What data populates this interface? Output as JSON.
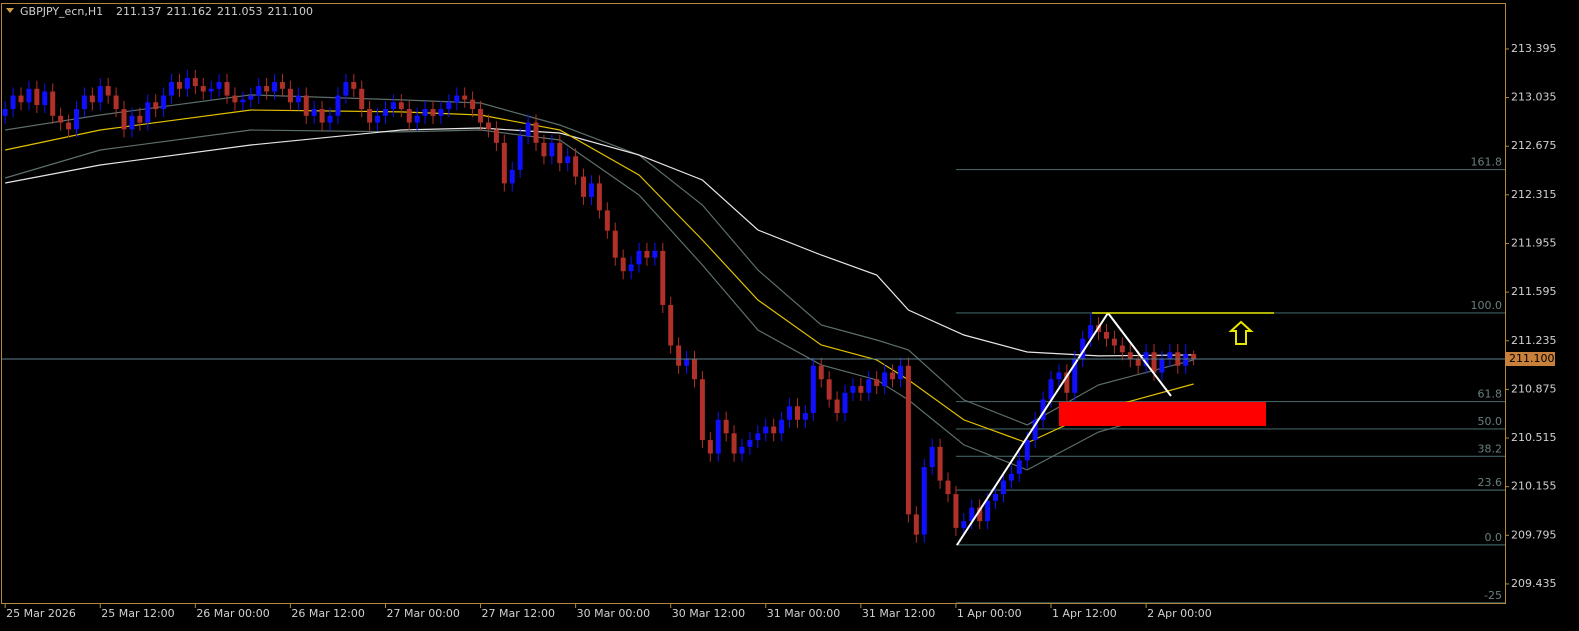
{
  "chart_data": {
    "type": "candlestick",
    "symbol": "GBPJPY_ecn,H1",
    "ohlc": [
      211.137,
      211.162,
      211.053,
      {
        "value": 211.1,
        "label": "211.100"
      }
    ],
    "current_price": {
      "value": 211.1,
      "label": "211.100"
    },
    "up_color": "#1010ff",
    "down_color": "#b0302a",
    "ylim": [
      209.294,
      213.735
    ],
    "yticks": [
      213.395,
      213.035,
      212.675,
      212.315,
      211.955,
      211.595,
      211.235,
      210.875,
      210.515,
      210.155,
      209.795,
      209.435
    ],
    "xlim": [
      -0.4,
      189.3
    ],
    "xticks": [
      {
        "value": 0,
        "label": "25 Mar 2026"
      },
      {
        "value": 12,
        "label": "25 Mar 12:00"
      },
      {
        "value": 24,
        "label": "26 Mar 00:00"
      },
      {
        "value": 36,
        "label": "26 Mar 12:00"
      },
      {
        "value": 48,
        "label": "27 Mar 00:00"
      },
      {
        "value": 60,
        "label": "27 Mar 12:00"
      },
      {
        "value": 72,
        "label": "30 Mar 00:00"
      },
      {
        "value": 84,
        "label": "30 Mar 12:00"
      },
      {
        "value": 96,
        "label": "31 Mar 00:00"
      },
      {
        "value": 108,
        "label": "31 Mar 12:00"
      },
      {
        "value": 120,
        "label": "1 Apr 00:00"
      },
      {
        "value": 132,
        "label": "1 Apr 12:00"
      },
      {
        "value": 144,
        "label": "2 Apr 00:00"
      }
    ],
    "open": [
      212.9,
      212.95,
      213.05,
      213.0,
      213.1,
      212.98,
      213.08,
      212.9,
      212.85,
      212.8,
      212.95,
      213.05,
      213.0,
      213.12,
      213.05,
      212.95,
      212.8,
      212.9,
      212.85,
      213.0,
      212.95,
      213.05,
      213.15,
      213.1,
      213.18,
      213.12,
      213.08,
      213.1,
      213.15,
      213.05,
      213.0,
      213.02,
      213.05,
      213.12,
      213.08,
      213.15,
      213.1,
      213.0,
      213.05,
      212.9,
      212.95,
      212.85,
      212.9,
      213.05,
      213.15,
      213.1,
      212.95,
      212.85,
      212.9,
      212.95,
      213.0,
      212.95,
      212.85,
      212.9,
      212.95,
      212.9,
      212.95,
      213.0,
      213.05,
      213.02,
      212.95,
      212.85,
      212.8,
      212.7,
      212.4,
      212.5,
      212.75,
      212.85,
      212.7,
      212.6,
      212.7,
      212.55,
      212.6,
      212.45,
      212.3,
      212.4,
      212.2,
      212.05,
      211.85,
      211.75,
      211.8,
      211.9,
      211.85,
      211.9,
      211.5,
      211.2,
      211.05,
      211.1,
      210.95,
      210.5,
      210.4,
      210.65,
      210.55,
      210.4,
      210.45,
      210.5,
      210.55,
      210.6,
      210.55,
      210.65,
      210.75,
      210.65,
      210.7,
      211.05,
      210.95,
      210.8,
      210.7,
      210.85,
      210.9,
      210.85,
      210.95,
      210.9,
      211.0,
      210.95,
      211.05,
      209.95,
      209.8,
      210.3,
      210.45,
      210.2,
      210.1,
      209.85,
      209.9,
      210.0,
      209.9,
      210.05,
      210.1,
      210.2,
      210.25,
      210.35,
      210.5,
      210.65,
      210.8,
      210.95,
      211.0,
      210.85,
      211.1,
      211.25,
      211.35,
      211.3,
      211.25,
      211.2,
      211.15,
      211.1,
      211.05,
      211.15,
      211.0,
      211.1,
      211.15,
      211.05,
      211.137
    ],
    "high": [
      213.01,
      213.11,
      213.11,
      213.16,
      213.16,
      213.14,
      213.14,
      212.96,
      212.91,
      213.01,
      213.11,
      213.11,
      213.18,
      213.18,
      213.11,
      213.01,
      212.96,
      212.96,
      213.06,
      213.06,
      213.11,
      213.21,
      213.21,
      213.24,
      213.24,
      213.18,
      213.16,
      213.21,
      213.21,
      213.11,
      213.08,
      213.11,
      213.18,
      213.18,
      213.21,
      213.21,
      213.16,
      213.11,
      213.11,
      213.01,
      213.01,
      212.96,
      213.11,
      213.21,
      213.21,
      213.16,
      213.01,
      212.96,
      213.01,
      213.06,
      213.06,
      213.01,
      212.96,
      213.01,
      213.01,
      213.01,
      213.06,
      213.11,
      213.11,
      213.08,
      213.01,
      212.91,
      212.86,
      212.76,
      212.56,
      212.81,
      212.91,
      212.91,
      212.76,
      212.76,
      212.76,
      212.66,
      212.66,
      212.51,
      212.46,
      212.46,
      212.26,
      212.11,
      211.91,
      211.86,
      211.96,
      211.96,
      211.96,
      211.96,
      211.56,
      211.26,
      211.16,
      211.16,
      211.01,
      210.56,
      210.71,
      210.71,
      210.61,
      210.51,
      210.56,
      210.61,
      210.66,
      210.66,
      210.71,
      210.81,
      210.81,
      210.76,
      211.11,
      211.11,
      211.01,
      210.86,
      210.91,
      210.96,
      210.96,
      211.01,
      211.01,
      211.06,
      211.06,
      211.11,
      211.11,
      210.01,
      210.36,
      210.51,
      210.51,
      210.26,
      210.16,
      209.96,
      210.06,
      210.06,
      210.11,
      210.16,
      210.26,
      210.31,
      210.41,
      210.56,
      210.71,
      210.86,
      211.01,
      211.06,
      211.06,
      211.16,
      211.31,
      211.44,
      211.41,
      211.36,
      211.31,
      211.26,
      211.21,
      211.16,
      211.21,
      211.21,
      211.16,
      211.21,
      211.21,
      211.21,
      211.162
    ],
    "low": [
      212.84,
      212.89,
      212.94,
      212.94,
      212.92,
      212.92,
      212.84,
      212.79,
      212.74,
      212.74,
      212.89,
      212.94,
      212.94,
      212.99,
      212.89,
      212.74,
      212.74,
      212.79,
      212.79,
      212.89,
      212.89,
      212.99,
      213.04,
      213.04,
      213.06,
      213.02,
      213.02,
      213.04,
      212.99,
      212.94,
      212.94,
      212.96,
      212.99,
      213.02,
      213.02,
      213.04,
      212.94,
      212.94,
      212.84,
      212.84,
      212.79,
      212.79,
      212.84,
      212.99,
      213.04,
      212.89,
      212.79,
      212.79,
      212.84,
      212.89,
      212.89,
      212.79,
      212.79,
      212.84,
      212.84,
      212.84,
      212.89,
      212.94,
      212.96,
      212.89,
      212.79,
      212.74,
      212.64,
      212.34,
      212.34,
      212.44,
      212.69,
      212.64,
      212.54,
      212.54,
      212.49,
      212.49,
      212.39,
      212.24,
      212.24,
      212.14,
      211.99,
      211.79,
      211.69,
      211.69,
      211.74,
      211.79,
      211.79,
      211.44,
      211.14,
      210.99,
      210.99,
      210.89,
      210.44,
      210.34,
      210.34,
      210.49,
      210.34,
      210.34,
      210.39,
      210.44,
      210.49,
      210.49,
      210.49,
      210.59,
      210.59,
      210.59,
      210.64,
      210.89,
      210.74,
      210.64,
      210.64,
      210.79,
      210.79,
      210.79,
      210.84,
      210.84,
      210.89,
      210.89,
      209.89,
      209.74,
      209.74,
      210.24,
      210.14,
      210.04,
      209.79,
      209.79,
      209.84,
      209.84,
      209.84,
      209.99,
      210.04,
      210.14,
      210.19,
      210.29,
      210.44,
      210.59,
      210.74,
      210.89,
      210.79,
      210.79,
      211.04,
      211.19,
      211.24,
      211.19,
      211.14,
      211.09,
      211.04,
      210.99,
      210.99,
      210.94,
      210.94,
      211.04,
      210.99,
      210.99,
      211.053
    ],
    "close": [
      212.95,
      213.05,
      213.0,
      213.1,
      212.98,
      213.08,
      212.9,
      212.85,
      212.8,
      212.95,
      213.05,
      213.0,
      213.12,
      213.05,
      212.95,
      212.8,
      212.9,
      212.85,
      213.0,
      212.95,
      213.05,
      213.15,
      213.1,
      213.18,
      213.12,
      213.08,
      213.1,
      213.15,
      213.05,
      213.0,
      213.02,
      213.05,
      213.12,
      213.08,
      213.15,
      213.1,
      213.0,
      213.05,
      212.9,
      212.95,
      212.85,
      212.9,
      213.05,
      213.15,
      213.1,
      212.95,
      212.85,
      212.9,
      212.95,
      213.0,
      212.95,
      212.85,
      212.9,
      212.95,
      212.9,
      212.95,
      213.0,
      213.05,
      213.02,
      212.95,
      212.85,
      212.8,
      212.7,
      212.4,
      212.5,
      212.75,
      212.85,
      212.7,
      212.6,
      212.7,
      212.55,
      212.6,
      212.45,
      212.3,
      212.4,
      212.2,
      212.05,
      211.85,
      211.75,
      211.8,
      211.9,
      211.85,
      211.9,
      211.5,
      211.2,
      211.05,
      211.1,
      210.95,
      210.5,
      210.4,
      210.65,
      210.55,
      210.4,
      210.45,
      210.5,
      210.55,
      210.6,
      210.55,
      210.65,
      210.75,
      210.65,
      210.7,
      211.05,
      210.95,
      210.8,
      210.7,
      210.85,
      210.9,
      210.85,
      210.95,
      210.9,
      211.0,
      210.95,
      211.05,
      209.95,
      209.8,
      210.3,
      210.45,
      210.2,
      210.1,
      209.85,
      209.9,
      210.0,
      209.9,
      210.05,
      210.1,
      210.2,
      210.25,
      210.35,
      210.5,
      210.65,
      210.8,
      210.95,
      211.0,
      210.85,
      211.1,
      211.25,
      211.35,
      211.3,
      211.25,
      211.2,
      211.15,
      211.1,
      211.05,
      211.15,
      211.0,
      211.1,
      211.15,
      211.05,
      211.137,
      211.1
    ],
    "indicators": [
      {
        "color": "#5d6f6a",
        "x": [
          0,
          12,
          31,
          50,
          60,
          70,
          80,
          88,
          95,
          103,
          110,
          114,
          121,
          129,
          138,
          150
        ],
        "values": [
          212.795,
          212.906,
          213.055,
          213.018,
          212.995,
          212.832,
          212.61,
          212.24,
          211.759,
          211.352,
          211.241,
          211.167,
          210.797,
          210.612,
          210.908,
          211.093
        ]
      },
      {
        "color": "#5d6f6a",
        "x": [
          0,
          12,
          31,
          50,
          60,
          70,
          80,
          88,
          95,
          103,
          110,
          114,
          121,
          129,
          138,
          150
        ],
        "values": [
          212.44,
          212.647,
          212.795,
          212.781,
          212.795,
          212.721,
          212.314,
          211.796,
          211.315,
          211.056,
          210.945,
          210.797,
          210.464,
          210.279,
          210.56,
          210.76
        ]
      },
      {
        "color": "#e6e6e6",
        "x": [
          0,
          12,
          31,
          50,
          60,
          70,
          80,
          88,
          95,
          103,
          110,
          114,
          121,
          129,
          138,
          150
        ],
        "values": [
          212.403,
          212.536,
          212.684,
          212.795,
          212.81,
          212.773,
          212.61,
          212.425,
          212.055,
          211.87,
          211.722,
          211.463,
          211.278,
          211.152,
          211.123,
          211.13
        ]
      },
      {
        "color": "#e0c000",
        "x": [
          0,
          12,
          31,
          50,
          60,
          70,
          80,
          88,
          95,
          103,
          110,
          114,
          121,
          129,
          138,
          150
        ],
        "values": [
          212.647,
          212.795,
          212.943,
          212.929,
          212.906,
          212.795,
          212.462,
          211.981,
          211.537,
          211.204,
          211.093,
          210.945,
          210.649,
          210.479,
          210.723,
          210.915
        ]
      }
    ],
    "fibonacci": {
      "low": 209.724,
      "high": 211.441,
      "levels": [
        161.8,
        {
          "value": 100,
          "label": "100.0"
        },
        61.8,
        {
          "value": 50,
          "label": "50.0"
        },
        38.2,
        23.6,
        {
          "value": 0,
          "label": "0.0"
        },
        -25
      ]
    }
  }
}
